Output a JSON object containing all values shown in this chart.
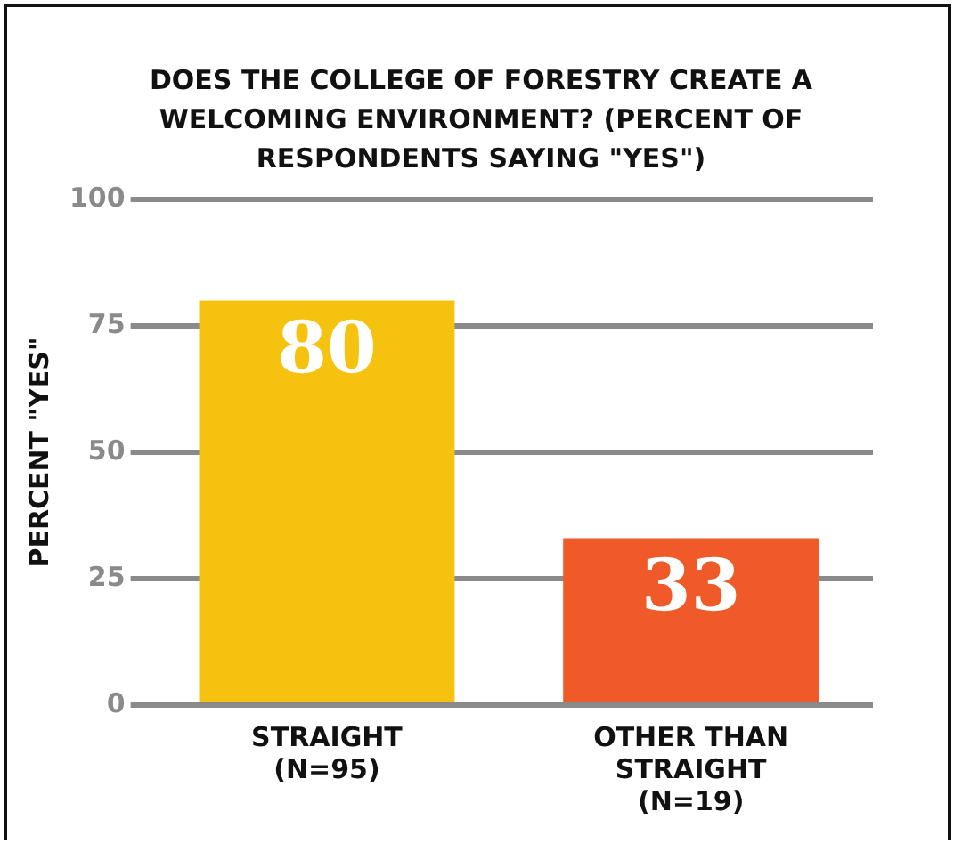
{
  "chart_data": {
    "type": "bar",
    "title": "DOES THE COLLEGE OF FORESTRY CREATE A WELCOMING ENVIRONMENT? (PERCENT OF RESPONDENTS SAYING \"YES\")",
    "ylabel": "PERCENT \"YES\"",
    "categories": [
      "STRAIGHT (N=95)",
      "OTHER THAN STRAIGHT (N=19)"
    ],
    "values": [
      80,
      33
    ],
    "colors": [
      "#f5c20f",
      "#f05a28"
    ],
    "ylim": [
      0,
      100
    ],
    "yticks": [
      0,
      25,
      50,
      75,
      100
    ],
    "grid": "y",
    "data_labels": true,
    "legend": false
  }
}
